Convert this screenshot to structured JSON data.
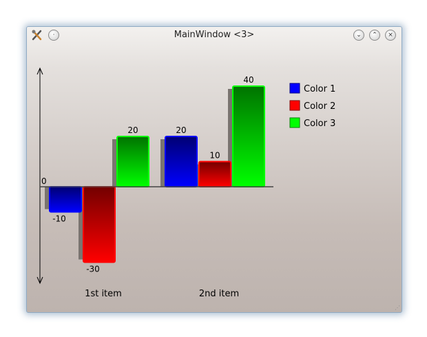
{
  "window": {
    "title": "MainWindow <3>",
    "buttons": [
      "minimize",
      "maximize",
      "close"
    ]
  },
  "chart_data": {
    "type": "bar",
    "title": "",
    "xlabel": "",
    "ylabel": "",
    "categories": [
      "1st item",
      "2nd item"
    ],
    "zero_label": "0",
    "ylim": [
      -30,
      40
    ],
    "grid": false,
    "legend_position": "top-right",
    "series": [
      {
        "name": "Color 1",
        "color": "#0000ff",
        "values": [
          -10,
          20
        ]
      },
      {
        "name": "Color 2",
        "color": "#ff0000",
        "values": [
          -30,
          10
        ]
      },
      {
        "name": "Color 3",
        "color": "#00ff00",
        "values": [
          20,
          40
        ]
      }
    ]
  }
}
